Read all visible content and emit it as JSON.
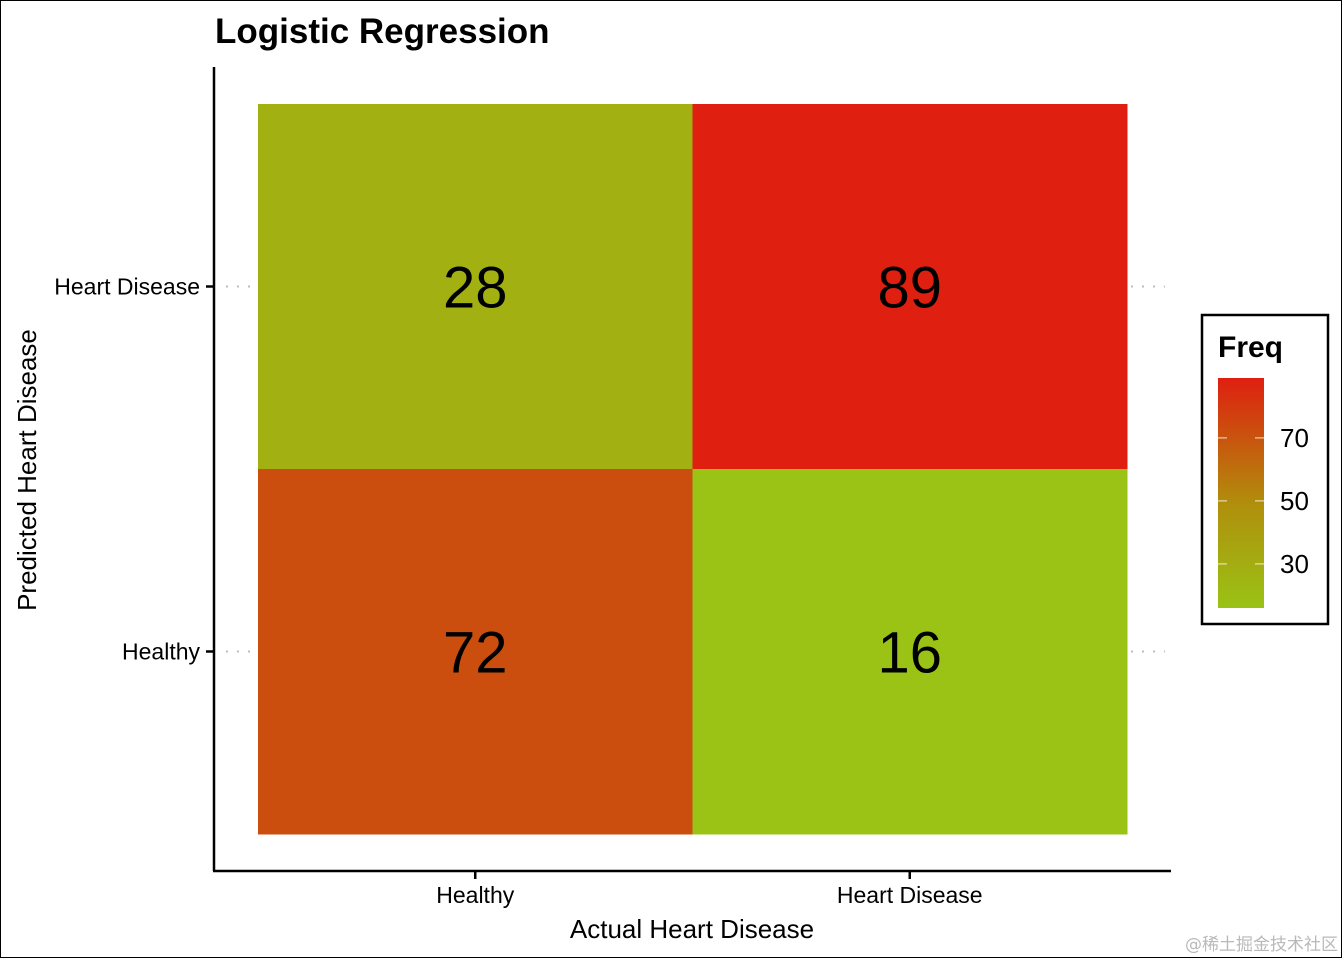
{
  "chart_data": {
    "type": "heatmap",
    "title": "Logistic Regression",
    "xlabel": "Actual Heart Disease",
    "ylabel": "Predicted Heart Disease",
    "x_categories": [
      "Healthy",
      "Heart Disease"
    ],
    "y_categories": [
      "Healthy",
      "Heart Disease"
    ],
    "cells": [
      {
        "x": "Healthy",
        "y": "Heart Disease",
        "value": 28
      },
      {
        "x": "Heart Disease",
        "y": "Heart Disease",
        "value": 89
      },
      {
        "x": "Healthy",
        "y": "Healthy",
        "value": 72
      },
      {
        "x": "Heart Disease",
        "y": "Healthy",
        "value": 16
      }
    ],
    "legend": {
      "title": "Freq",
      "ticks": [
        30,
        50,
        70
      ],
      "range": [
        16,
        89
      ],
      "low_color": "#9ac315",
      "mid_color": "#b08f0c",
      "high_color": "#df1f10",
      "placement": "right"
    },
    "grid": false
  },
  "watermark": "@稀土掘金技术社区"
}
